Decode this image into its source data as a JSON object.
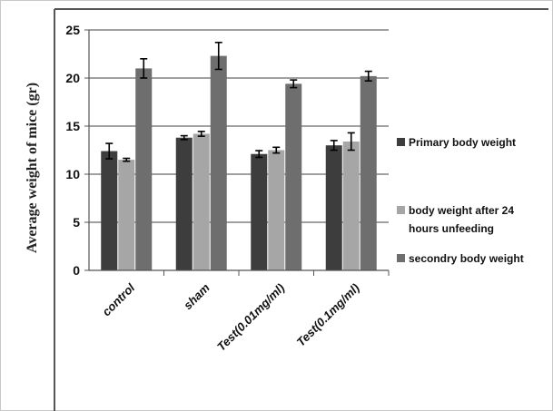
{
  "chart_data": {
    "type": "bar",
    "title": "",
    "xlabel": "",
    "ylabel": "Average weight of mice (gr)",
    "ylim": [
      0,
      25
    ],
    "yticks": [
      "0",
      "5",
      "10",
      "15",
      "20",
      "25"
    ],
    "grid": true,
    "legend_position": "right",
    "categories": [
      "control",
      "sham",
      "Test(0.01mg/ml)",
      "Test(0.1mg/ml)"
    ],
    "series": [
      {
        "name": "Primary body weight",
        "color": "#3d3d3d",
        "values": [
          12.4,
          13.8,
          12.1,
          13.0
        ],
        "errors": [
          0.8,
          0.2,
          0.35,
          0.5
        ]
      },
      {
        "name": "body weight after 24 hours unfeeding",
        "color": "#a6a6a6",
        "values": [
          11.5,
          14.2,
          12.5,
          13.4
        ],
        "errors": [
          0.15,
          0.25,
          0.3,
          0.9
        ]
      },
      {
        "name": "secondry body weight",
        "color": "#6e6e6e",
        "values": [
          21.0,
          22.3,
          19.4,
          20.2
        ],
        "errors": [
          1.0,
          1.4,
          0.4,
          0.5
        ]
      }
    ],
    "legend_lines": [
      [
        "Primary body weight"
      ],
      [
        "body weight after 24",
        "hours unfeeding"
      ],
      [
        "secondry body weight"
      ]
    ]
  }
}
